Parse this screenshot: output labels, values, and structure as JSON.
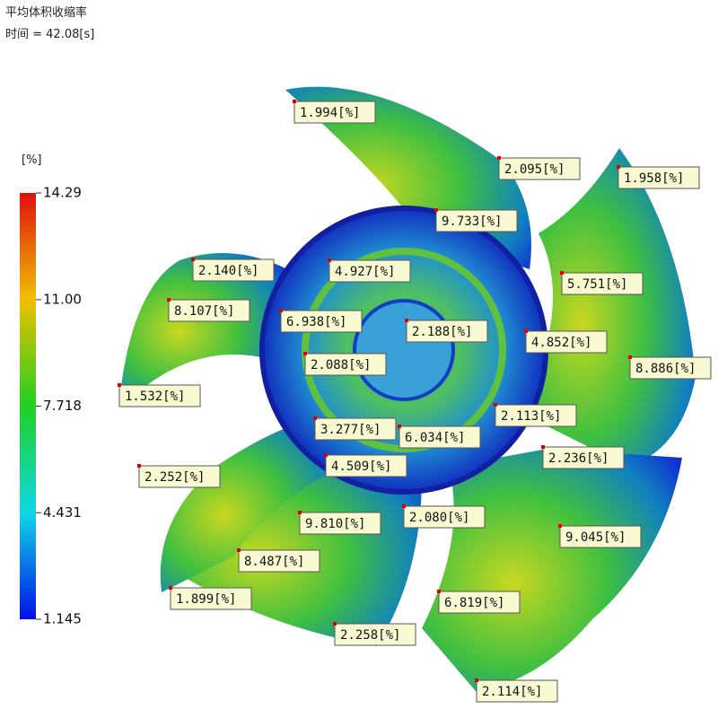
{
  "header": {
    "title": "平均体积收缩率",
    "subtitle": "时间 = 42.08[s]"
  },
  "legend": {
    "unit": "[%]",
    "ticks": [
      14.29,
      {
        "value": 11,
        "label": "11.00"
      },
      7.718,
      4.431,
      1.145
    ]
  },
  "annotations": [
    "1.994[%]",
    "2.095[%]",
    "1.958[%]",
    "9.733[%]",
    "2.140[%]",
    "4.927[%]",
    "5.751[%]",
    "8.107[%]",
    "6.938[%]",
    "2.188[%]",
    "4.852[%]",
    "8.886[%]",
    "2.088[%]",
    "1.532[%]",
    "2.113[%]",
    "3.277[%]",
    "6.034[%]",
    "4.509[%]",
    "2.236[%]",
    "2.252[%]",
    "9.810[%]",
    "2.080[%]",
    "9.045[%]",
    "8.487[%]",
    "1.899[%]",
    "6.819[%]",
    "2.258[%]",
    "2.114[%]"
  ]
}
